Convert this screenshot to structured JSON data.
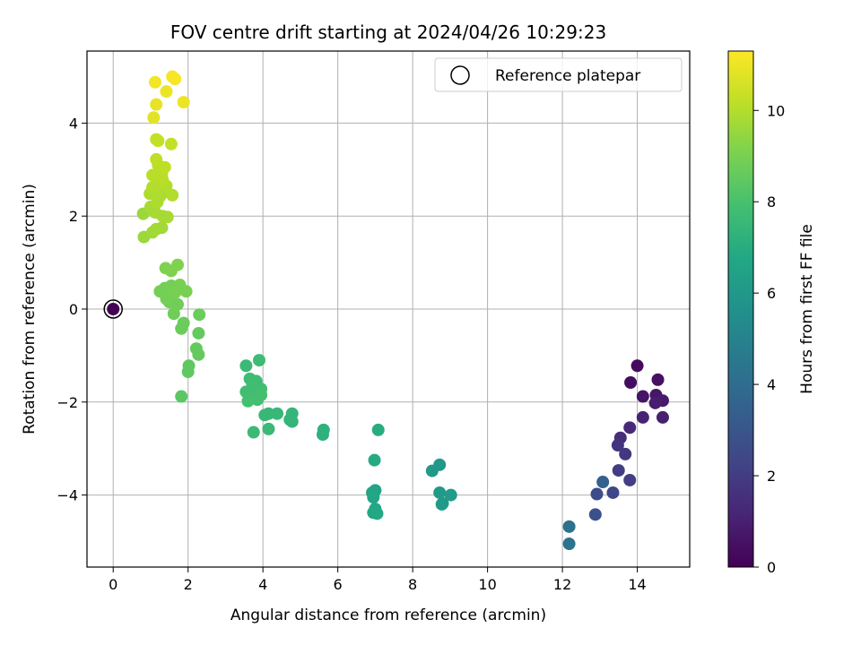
{
  "chart_data": {
    "type": "scatter",
    "title": "FOV centre drift starting at 2024/04/26 10:29:23",
    "xlabel": "Angular distance from reference (arcmin)",
    "ylabel": "Rotation from reference (arcmin)",
    "xlim": [
      -0.7,
      15.4
    ],
    "ylim": [
      -5.55,
      5.55
    ],
    "xticks": [
      0,
      2,
      4,
      6,
      8,
      10,
      12,
      14
    ],
    "yticks": [
      -4,
      -2,
      0,
      2,
      4
    ],
    "grid": true,
    "legend": {
      "placement": "top-right",
      "entries": [
        "Reference platepar"
      ]
    },
    "colorbar": {
      "label": "Hours from first FF file",
      "range": [
        0,
        11.3
      ],
      "ticks": [
        0,
        2,
        4,
        6,
        8,
        10
      ],
      "colormap": "viridis"
    },
    "reference_point": {
      "x": 0,
      "y": 0,
      "t": 0
    },
    "points": [
      {
        "x": 14.0,
        "y": -1.22,
        "t": 0.3
      },
      {
        "x": 13.82,
        "y": -1.58,
        "t": 0.4
      },
      {
        "x": 14.55,
        "y": -1.52,
        "t": 0.5
      },
      {
        "x": 14.15,
        "y": -1.88,
        "t": 0.6
      },
      {
        "x": 14.5,
        "y": -1.85,
        "t": 0.7
      },
      {
        "x": 14.68,
        "y": -1.97,
        "t": 0.8
      },
      {
        "x": 14.48,
        "y": -2.02,
        "t": 0.9
      },
      {
        "x": 14.68,
        "y": -2.33,
        "t": 1.0
      },
      {
        "x": 14.15,
        "y": -2.33,
        "t": 1.1
      },
      {
        "x": 13.8,
        "y": -2.55,
        "t": 1.3
      },
      {
        "x": 13.55,
        "y": -2.77,
        "t": 1.5
      },
      {
        "x": 13.48,
        "y": -2.93,
        "t": 1.7
      },
      {
        "x": 13.68,
        "y": -3.12,
        "t": 1.8
      },
      {
        "x": 13.5,
        "y": -3.47,
        "t": 2.0
      },
      {
        "x": 13.8,
        "y": -3.68,
        "t": 2.1
      },
      {
        "x": 13.35,
        "y": -3.95,
        "t": 2.4
      },
      {
        "x": 12.92,
        "y": -3.98,
        "t": 2.6
      },
      {
        "x": 12.88,
        "y": -4.42,
        "t": 2.8
      },
      {
        "x": 13.08,
        "y": -3.72,
        "t": 3.5
      },
      {
        "x": 12.18,
        "y": -4.68,
        "t": 4.2
      },
      {
        "x": 12.18,
        "y": -5.05,
        "t": 4.3
      },
      {
        "x": 8.52,
        "y": -3.48,
        "t": 6.0
      },
      {
        "x": 8.72,
        "y": -3.35,
        "t": 6.0
      },
      {
        "x": 8.72,
        "y": -3.95,
        "t": 6.1
      },
      {
        "x": 8.8,
        "y": -4.18,
        "t": 6.2
      },
      {
        "x": 9.02,
        "y": -4.0,
        "t": 6.2
      },
      {
        "x": 8.78,
        "y": -4.2,
        "t": 6.1
      },
      {
        "x": 6.92,
        "y": -3.95,
        "t": 6.6
      },
      {
        "x": 7.0,
        "y": -3.9,
        "t": 6.6
      },
      {
        "x": 6.95,
        "y": -4.05,
        "t": 6.7
      },
      {
        "x": 7.0,
        "y": -4.3,
        "t": 6.7
      },
      {
        "x": 6.95,
        "y": -4.38,
        "t": 6.7
      },
      {
        "x": 7.05,
        "y": -4.4,
        "t": 6.8
      },
      {
        "x": 6.98,
        "y": -3.25,
        "t": 6.9
      },
      {
        "x": 7.08,
        "y": -2.6,
        "t": 7.0
      },
      {
        "x": 5.6,
        "y": -2.7,
        "t": 7.2
      },
      {
        "x": 5.62,
        "y": -2.6,
        "t": 7.2
      },
      {
        "x": 4.78,
        "y": -2.25,
        "t": 7.4
      },
      {
        "x": 4.78,
        "y": -2.42,
        "t": 7.4
      },
      {
        "x": 4.72,
        "y": -2.38,
        "t": 7.4
      },
      {
        "x": 4.38,
        "y": -2.25,
        "t": 7.5
      },
      {
        "x": 4.15,
        "y": -2.25,
        "t": 7.5
      },
      {
        "x": 4.05,
        "y": -2.28,
        "t": 7.5
      },
      {
        "x": 4.15,
        "y": -2.58,
        "t": 7.6
      },
      {
        "x": 3.75,
        "y": -2.65,
        "t": 7.6
      },
      {
        "x": 3.55,
        "y": -1.22,
        "t": 7.6
      },
      {
        "x": 3.9,
        "y": -1.1,
        "t": 7.7
      },
      {
        "x": 3.65,
        "y": -1.5,
        "t": 7.7
      },
      {
        "x": 3.82,
        "y": -1.55,
        "t": 7.7
      },
      {
        "x": 3.72,
        "y": -1.62,
        "t": 7.8
      },
      {
        "x": 3.55,
        "y": -1.78,
        "t": 7.8
      },
      {
        "x": 3.8,
        "y": -1.78,
        "t": 7.8
      },
      {
        "x": 3.95,
        "y": -1.72,
        "t": 7.8
      },
      {
        "x": 3.68,
        "y": -1.88,
        "t": 7.8
      },
      {
        "x": 3.85,
        "y": -1.95,
        "t": 7.9
      },
      {
        "x": 3.6,
        "y": -1.98,
        "t": 7.9
      },
      {
        "x": 3.95,
        "y": -1.85,
        "t": 7.9
      },
      {
        "x": 1.82,
        "y": -1.88,
        "t": 8.4
      },
      {
        "x": 2.0,
        "y": -1.35,
        "t": 8.5
      },
      {
        "x": 2.02,
        "y": -1.22,
        "t": 8.5
      },
      {
        "x": 2.22,
        "y": -0.85,
        "t": 8.6
      },
      {
        "x": 2.28,
        "y": -0.98,
        "t": 8.6
      },
      {
        "x": 2.28,
        "y": -0.52,
        "t": 8.6
      },
      {
        "x": 2.3,
        "y": -0.12,
        "t": 8.7
      },
      {
        "x": 1.88,
        "y": -0.3,
        "t": 8.7
      },
      {
        "x": 1.82,
        "y": -0.42,
        "t": 8.7
      },
      {
        "x": 1.62,
        "y": -0.1,
        "t": 8.8
      },
      {
        "x": 1.72,
        "y": 0.1,
        "t": 8.8
      },
      {
        "x": 1.5,
        "y": 0.15,
        "t": 8.8
      },
      {
        "x": 1.42,
        "y": 0.22,
        "t": 8.9
      },
      {
        "x": 1.38,
        "y": 0.45,
        "t": 8.9
      },
      {
        "x": 1.25,
        "y": 0.38,
        "t": 8.9
      },
      {
        "x": 1.55,
        "y": 0.5,
        "t": 8.9
      },
      {
        "x": 1.78,
        "y": 0.52,
        "t": 9.0
      },
      {
        "x": 1.95,
        "y": 0.38,
        "t": 9.0
      },
      {
        "x": 1.65,
        "y": 0.35,
        "t": 9.0
      },
      {
        "x": 1.4,
        "y": 0.88,
        "t": 9.1
      },
      {
        "x": 1.55,
        "y": 0.82,
        "t": 9.1
      },
      {
        "x": 1.72,
        "y": 0.95,
        "t": 9.1
      },
      {
        "x": 0.82,
        "y": 1.55,
        "t": 9.6
      },
      {
        "x": 0.8,
        "y": 2.05,
        "t": 9.6
      },
      {
        "x": 1.05,
        "y": 1.65,
        "t": 9.7
      },
      {
        "x": 1.15,
        "y": 1.72,
        "t": 9.7
      },
      {
        "x": 1.3,
        "y": 1.75,
        "t": 9.7
      },
      {
        "x": 1.12,
        "y": 2.08,
        "t": 9.8
      },
      {
        "x": 1.32,
        "y": 2.0,
        "t": 9.8
      },
      {
        "x": 1.45,
        "y": 1.98,
        "t": 9.8
      },
      {
        "x": 1.0,
        "y": 2.2,
        "t": 9.8
      },
      {
        "x": 1.18,
        "y": 2.3,
        "t": 9.9
      },
      {
        "x": 0.98,
        "y": 2.48,
        "t": 9.9
      },
      {
        "x": 1.25,
        "y": 2.42,
        "t": 9.9
      },
      {
        "x": 1.4,
        "y": 2.52,
        "t": 9.9
      },
      {
        "x": 1.58,
        "y": 2.45,
        "t": 10.0
      },
      {
        "x": 1.05,
        "y": 2.62,
        "t": 10.0
      },
      {
        "x": 1.2,
        "y": 2.68,
        "t": 10.0
      },
      {
        "x": 1.42,
        "y": 2.65,
        "t": 10.0
      },
      {
        "x": 1.32,
        "y": 2.78,
        "t": 10.1
      },
      {
        "x": 1.05,
        "y": 2.88,
        "t": 10.1
      },
      {
        "x": 1.3,
        "y": 2.92,
        "t": 10.1
      },
      {
        "x": 1.2,
        "y": 3.1,
        "t": 10.1
      },
      {
        "x": 1.38,
        "y": 3.05,
        "t": 10.2
      },
      {
        "x": 1.15,
        "y": 3.22,
        "t": 10.2
      },
      {
        "x": 1.2,
        "y": 3.62,
        "t": 10.3
      },
      {
        "x": 1.15,
        "y": 3.65,
        "t": 10.3
      },
      {
        "x": 1.55,
        "y": 3.55,
        "t": 10.3
      },
      {
        "x": 1.08,
        "y": 4.12,
        "t": 10.8
      },
      {
        "x": 1.15,
        "y": 4.4,
        "t": 10.9
      },
      {
        "x": 1.42,
        "y": 4.68,
        "t": 11.0
      },
      {
        "x": 1.88,
        "y": 4.45,
        "t": 11.0
      },
      {
        "x": 1.12,
        "y": 4.88,
        "t": 11.1
      },
      {
        "x": 1.58,
        "y": 5.0,
        "t": 11.2
      },
      {
        "x": 1.65,
        "y": 4.95,
        "t": 11.2
      }
    ]
  }
}
